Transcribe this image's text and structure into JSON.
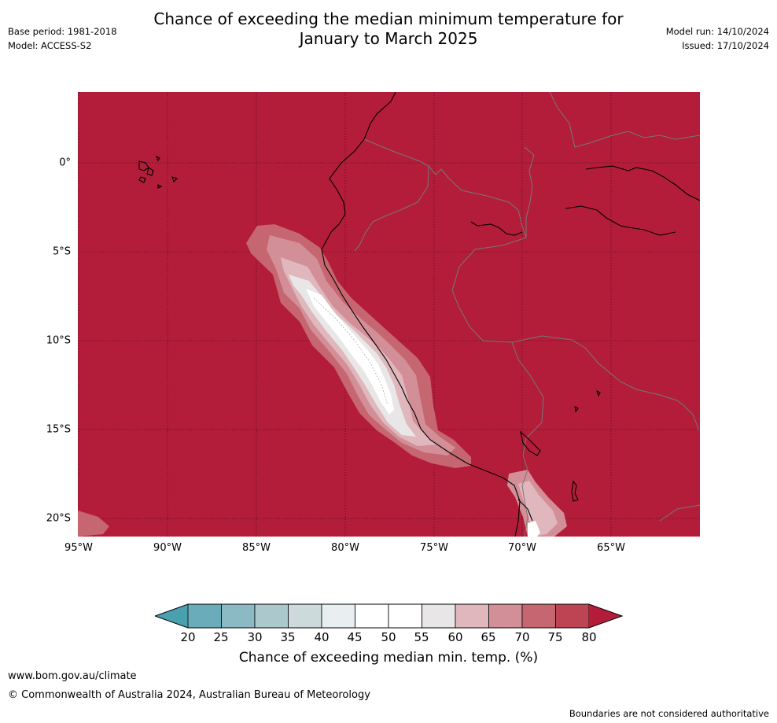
{
  "title": {
    "line1": "Chance of exceeding the median minimum temperature for",
    "line2": "January to March 2025"
  },
  "meta": {
    "base_period": "Base period: 1981-2018",
    "model": "Model: ACCESS-S2",
    "model_run": "Model run: 14/10/2024",
    "issued": "Issued: 17/10/2024"
  },
  "map": {
    "latitude_labels": [
      "0°",
      "5°S",
      "10°S",
      "15°S",
      "20°S"
    ],
    "longitude_labels": [
      "95°W",
      "90°W",
      "85°W",
      "80°W",
      "75°W",
      "70°W",
      "65°W"
    ],
    "background_color": "#b31d39",
    "coastline_color": "#000000",
    "border_color": "#777777"
  },
  "colorbar": {
    "title": "Chance of exceeding median min. temp. (%)",
    "ticks": [
      "20",
      "25",
      "30",
      "35",
      "40",
      "45",
      "50",
      "55",
      "60",
      "65",
      "70",
      "75",
      "80"
    ],
    "colors": [
      "#49a0af",
      "#6aacb9",
      "#8bbac4",
      "#abc9cd",
      "#ccdadb",
      "#e9eef0",
      "#ffffff",
      "#ffffff",
      "#e8e6e7",
      "#dfb7bd",
      "#d38f97",
      "#c66671",
      "#bd4553",
      "#b31d39"
    ]
  },
  "footer": {
    "website": "www.bom.gov.au/climate",
    "copyright": "© Commonwealth of Australia 2024, Australian Bureau of Meteorology",
    "disclaimer": "Boundaries are not considered authoritative"
  }
}
